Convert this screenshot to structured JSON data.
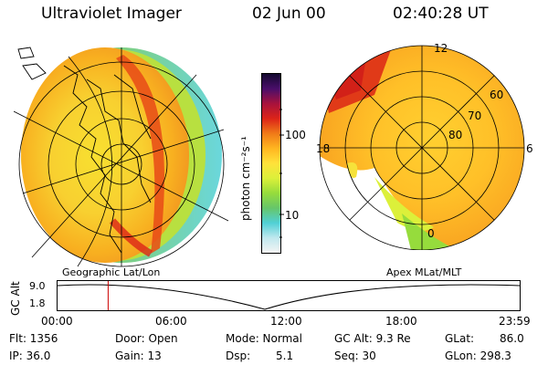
{
  "header": {
    "title": "Ultraviolet Imager",
    "date": "02 Jun 00",
    "time": "02:40:28 UT"
  },
  "colorbar": {
    "unit_label": "photon cm⁻²s⁻¹",
    "ticks": [
      "100",
      "10"
    ],
    "scale": "log",
    "colors": [
      "#f4f4f4",
      "#c0e8ee",
      "#50d0d6",
      "#66c66a",
      "#96dc3c",
      "#dcf03a",
      "#ffe23a",
      "#ffb620",
      "#f07a18",
      "#dc2418",
      "#a8123c",
      "#4a0e6a",
      "#140a30"
    ]
  },
  "left_map": {
    "label": "Geographic Lat/Lon"
  },
  "right_map": {
    "label": "Apex MLat/MLT",
    "lat_labels": [
      "60",
      "70",
      "80"
    ],
    "mlt_labels": [
      "12",
      "18",
      "6",
      "0"
    ]
  },
  "altitude_plot": {
    "ylabel": "GC Alt",
    "yticks": [
      "9.0",
      "1.8"
    ],
    "xticks": [
      "00:00",
      "06:00",
      "12:00",
      "18:00",
      "23:59"
    ],
    "current_time_hours": 2.67
  },
  "status": {
    "flt": "Flt: 1356",
    "ip": "IP: 36.0",
    "door": "Door: Open",
    "gain": "Gain: 13",
    "mode": "Mode: Normal",
    "dsp": "Dsp:",
    "dsp_val": "5.1",
    "gc_alt": "GC Alt: 9.3 Re",
    "seq": "Seq: 30",
    "glat": "GLat:",
    "glat_val": "86.0",
    "glon": "GLon: 298.3"
  }
}
